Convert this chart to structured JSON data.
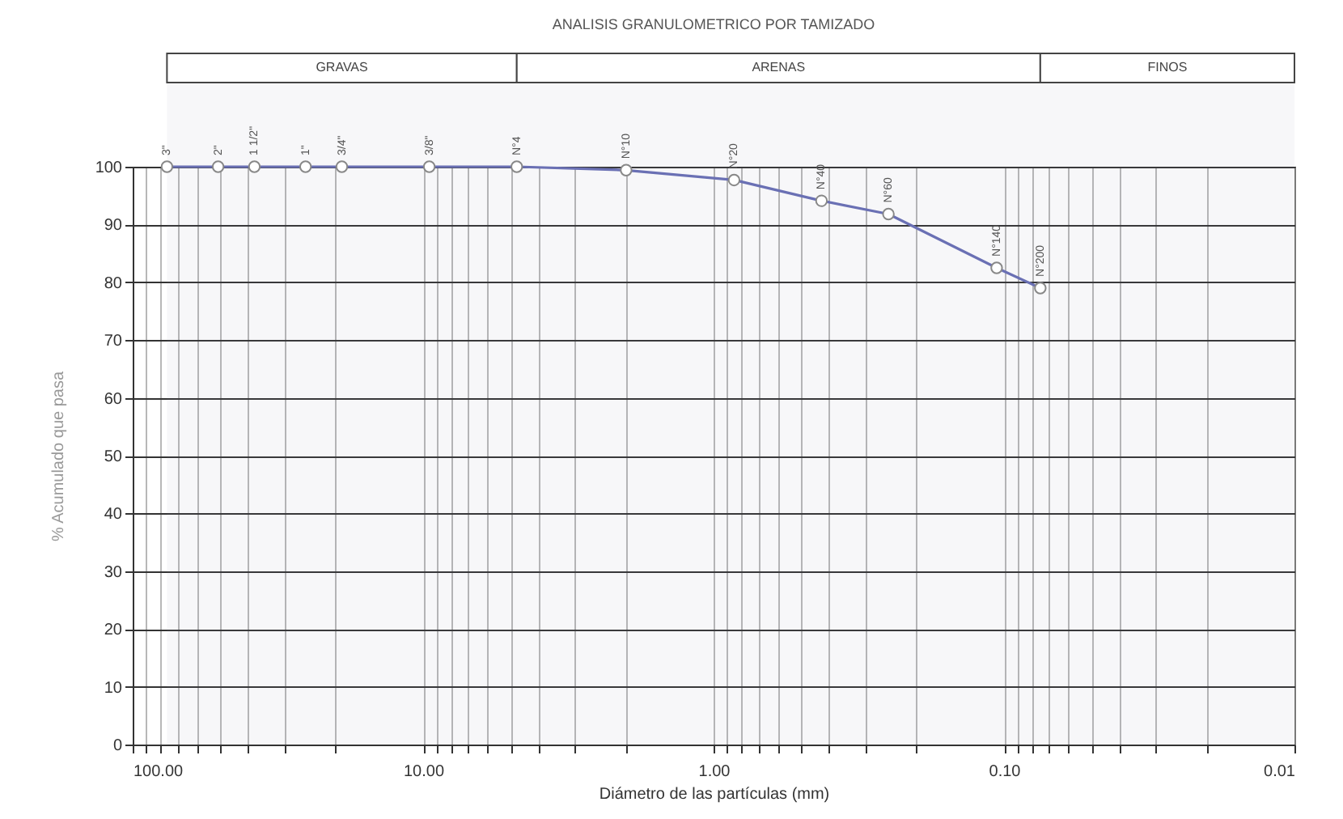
{
  "chart_data": {
    "type": "line",
    "title": "ANALISIS GRANULOMETRICO POR TAMIZADO",
    "xlabel": "Diámetro de las partículas (mm)",
    "ylabel": "% Acumulado que pasa",
    "x": [
      76.2,
      50.8,
      38.1,
      25.4,
      19.05,
      9.525,
      4.76,
      2.0,
      0.85,
      0.425,
      0.25,
      0.106,
      0.075
    ],
    "series": [
      {
        "color": "#6a70b4",
        "values": [
          100,
          100,
          100,
          100,
          100,
          100,
          100,
          99.4,
          97.7,
          94.1,
          91.8,
          82.5,
          79
        ]
      }
    ],
    "log": "x",
    "xlim": [
      100,
      0.01
    ],
    "xticks": [
      {
        "value": 100,
        "label": "100.00"
      },
      {
        "value": 10,
        "label": "10.00"
      },
      {
        "value": 1,
        "label": "1.00"
      },
      {
        "value": 0.1,
        "label": "0.10"
      },
      {
        "value": 0.01,
        "label": "0.01"
      }
    ],
    "ylim": [
      0,
      100
    ],
    "yticks": [
      0,
      10,
      20,
      30,
      40,
      50,
      60,
      70,
      80,
      90,
      100
    ],
    "annotations": [
      {
        "text": "3\"",
        "x": 76.2,
        "y": 100
      },
      {
        "text": "2\"",
        "x": 50.8,
        "y": 100
      },
      {
        "text": "1 1/2\"",
        "x": 38.1,
        "y": 100
      },
      {
        "text": "1\"",
        "x": 25.4,
        "y": 100
      },
      {
        "text": "3/4\"",
        "x": 19.05,
        "y": 100
      },
      {
        "text": "3/8\"",
        "x": 9.525,
        "y": 100
      },
      {
        "text": "N°4",
        "x": 4.76,
        "y": 100
      },
      {
        "text": "N°10",
        "x": 2.0,
        "y": 99.4
      },
      {
        "text": "N°20",
        "x": 0.85,
        "y": 97.7
      },
      {
        "text": "N°40",
        "x": 0.425,
        "y": 94.1
      },
      {
        "text": "N°60",
        "x": 0.25,
        "y": 91.8
      },
      {
        "text": "N°140",
        "x": 0.106,
        "y": 82.5
      },
      {
        "text": "N°200",
        "x": 0.075,
        "y": 79
      }
    ],
    "bands": [
      {
        "axis": "x",
        "from": 76.2,
        "to": 4.76,
        "label": "GRAVAS"
      },
      {
        "axis": "x",
        "from": 4.76,
        "to": 0.075,
        "label": "ARENAS"
      },
      {
        "axis": "x",
        "from": 0.075,
        "to": 0.01,
        "label": "FINOS"
      }
    ],
    "grid": true,
    "marker": "circle",
    "line_style": "solid"
  }
}
